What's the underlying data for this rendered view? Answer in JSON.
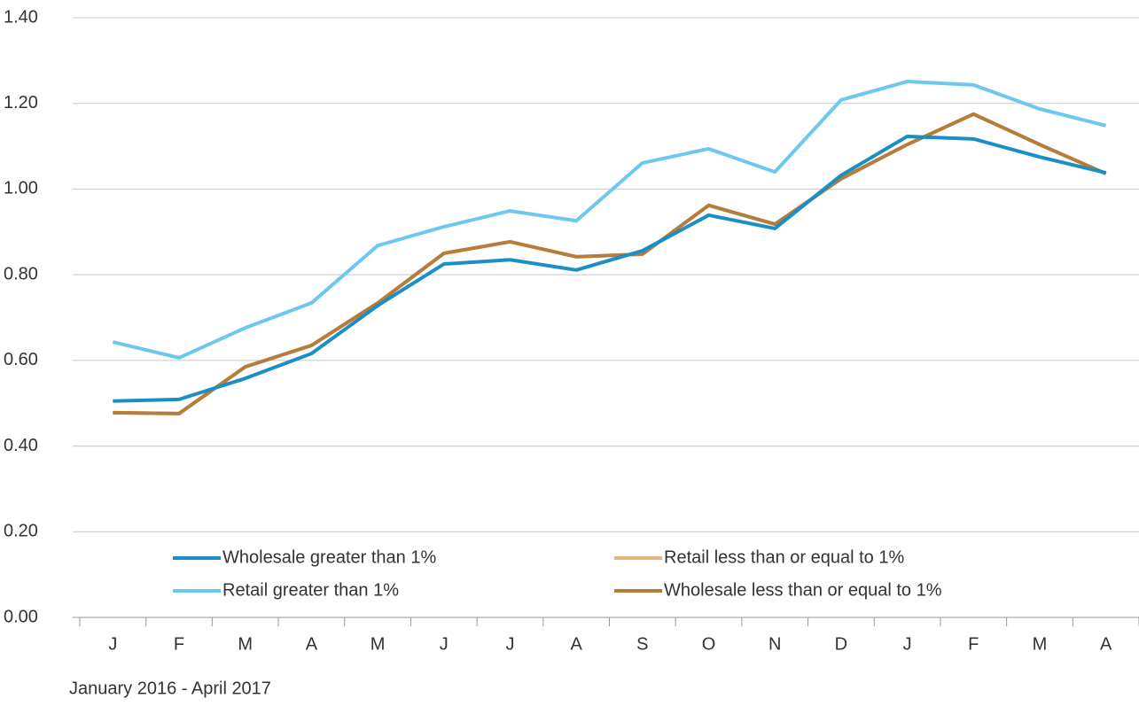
{
  "chart_data": {
    "type": "line",
    "categories": [
      "J",
      "F",
      "M",
      "A",
      "M",
      "J",
      "J",
      "A",
      "S",
      "O",
      "N",
      "D",
      "J",
      "F",
      "M",
      "A"
    ],
    "series": [
      {
        "name": "Wholesale greater than 1%",
        "color": "#1a8fc7",
        "values": [
          0.505,
          0.509,
          0.558,
          0.616,
          0.728,
          0.825,
          0.835,
          0.811,
          0.856,
          0.939,
          0.908,
          1.032,
          1.123,
          1.117,
          1.075,
          1.038
        ]
      },
      {
        "name": "Retail less than or equal to 1%",
        "color": "#e3b47f",
        "values": [
          0.478,
          0.476,
          0.585,
          0.635,
          0.734,
          0.85,
          0.877,
          0.842,
          0.848,
          0.962,
          0.918,
          1.024,
          1.104,
          1.175,
          1.104,
          1.036
        ]
      },
      {
        "name": "Retail greater than 1%",
        "color": "#6cc8ee",
        "values": [
          0.643,
          0.606,
          0.676,
          0.734,
          0.868,
          0.912,
          0.949,
          0.926,
          1.061,
          1.094,
          1.04,
          1.208,
          1.251,
          1.243,
          1.187,
          1.148
        ]
      },
      {
        "name": "Wholesale less than or equal to 1%",
        "color": "#b57c3c",
        "values": [
          0.478,
          0.476,
          0.585,
          0.635,
          0.734,
          0.85,
          0.877,
          0.842,
          0.848,
          0.962,
          0.918,
          1.024,
          1.104,
          1.175,
          1.104,
          1.036
        ]
      }
    ],
    "ylim": [
      0,
      1.4
    ],
    "yticks": [
      {
        "value": 0,
        "label": "0.00"
      },
      {
        "value": 0.2,
        "label": "0.20"
      },
      {
        "value": 0.4,
        "label": "0.40"
      },
      {
        "value": 0.6,
        "label": "0.60"
      },
      {
        "value": 0.8,
        "label": "0.80"
      },
      {
        "value": 1.0,
        "label": "1.00"
      },
      {
        "value": 1.2,
        "label": "1.20"
      },
      {
        "value": 1.4,
        "label": "1.40"
      }
    ],
    "grid": true,
    "xlabel": "January 2016  -  April 2017"
  }
}
